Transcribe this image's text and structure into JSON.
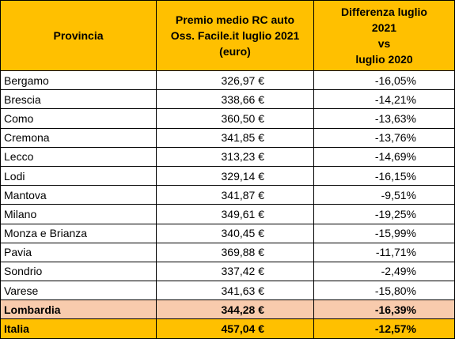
{
  "table": {
    "header": [
      "Provincia",
      [
        "Premio medio RC auto",
        "Oss. Facile.it luglio 2021",
        "(euro)"
      ],
      [
        "Differenza luglio",
        "2021",
        "vs",
        "luglio 2020"
      ]
    ],
    "rows": [
      [
        "Bergamo",
        "326,97 €",
        "-16,05%"
      ],
      [
        "Brescia",
        "338,66 €",
        "-14,21%"
      ],
      [
        "Como",
        "360,50 €",
        "-13,63%"
      ],
      [
        "Cremona",
        "341,85 €",
        "-13,76%"
      ],
      [
        "Lecco",
        "313,23 €",
        "-14,69%"
      ],
      [
        "Lodi",
        "329,14 €",
        "-16,15%"
      ],
      [
        "Mantova",
        "341,87 €",
        "-9,51%"
      ],
      [
        "Milano",
        "349,61 €",
        "-19,25%"
      ],
      [
        "Monza e Brianza",
        "340,45 €",
        "-15,99%"
      ],
      [
        "Pavia",
        "369,88 €",
        "-11,71%"
      ],
      [
        "Sondrio",
        "337,42 €",
        "-2,49%"
      ],
      [
        "Varese",
        "341,63 €",
        "-15,80%"
      ],
      [
        "Lombardia",
        "344,28 €",
        "-16,39%"
      ],
      [
        "Italia",
        "457,04 €",
        "-12,57%"
      ]
    ]
  }
}
